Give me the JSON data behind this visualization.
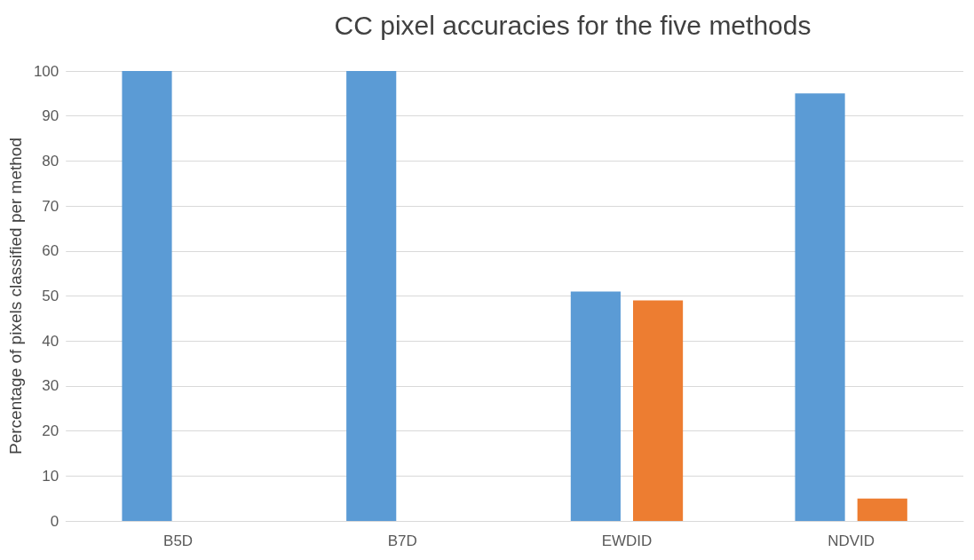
{
  "chart_data": {
    "type": "bar",
    "title": "CC pixel accuracies for the five methods",
    "ylabel": "Percentage of pixels classified per method",
    "categories": [
      "B5D",
      "B7D",
      "EWDID",
      "NDVID"
    ],
    "series": [
      {
        "color": "#5b9bd5",
        "values": [
          100,
          100,
          51,
          95
        ]
      },
      {
        "color": "#ed7d31",
        "values": [
          0,
          0,
          49,
          5
        ]
      }
    ],
    "ylim": [
      0,
      100
    ],
    "yticks": [
      0,
      10,
      20,
      30,
      40,
      50,
      60,
      70,
      80,
      90,
      100
    ],
    "grid": "y"
  }
}
